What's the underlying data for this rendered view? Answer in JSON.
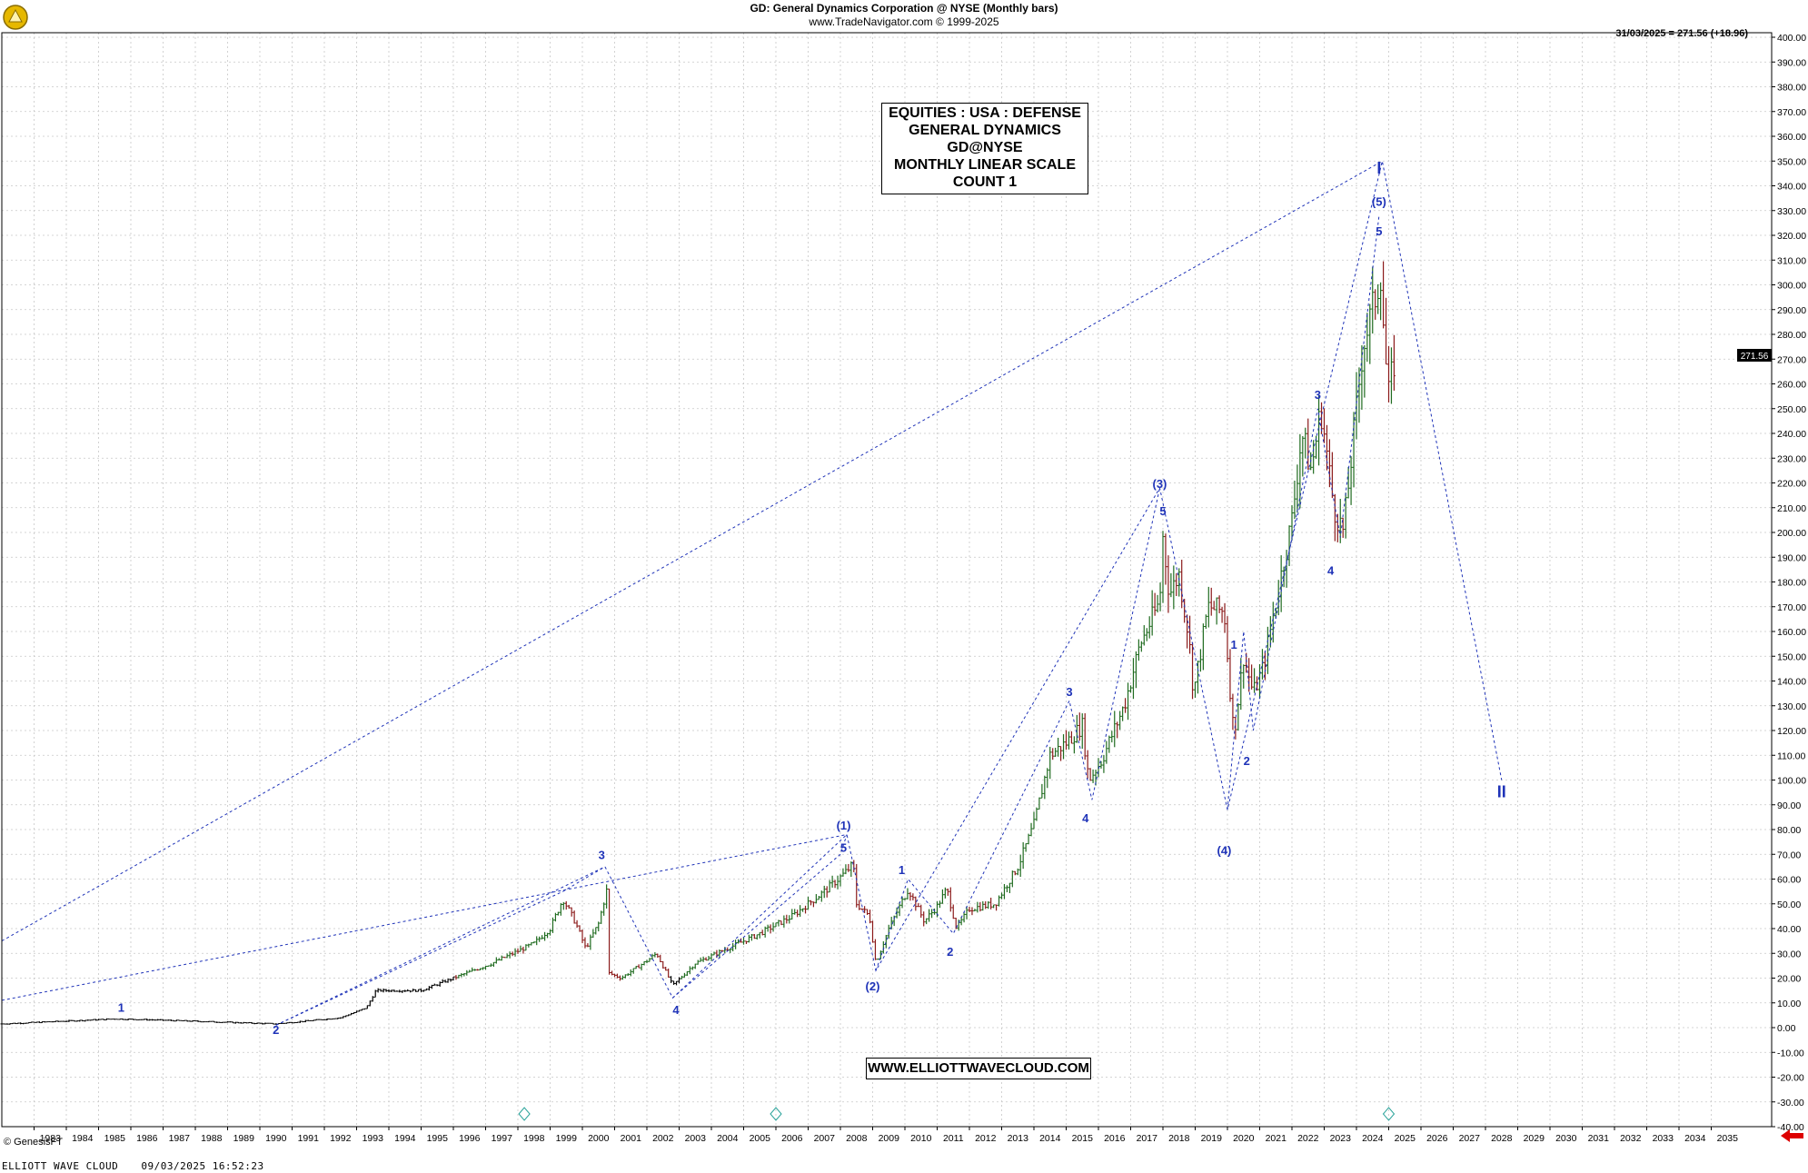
{
  "header": {
    "title": "GD:  General Dynamics Corporation @ NYSE  (Monthly bars)",
    "source": "www.TradeNavigator.com © 1999-2025",
    "last_bar": "31/03/2025 = 271.56 (+18.96)"
  },
  "info_box": [
    "EQUITIES : USA : DEFENSE",
    "GENERAL DYNAMICS",
    "GD@NYSE",
    "MONTHLY LINEAR SCALE",
    "COUNT 1"
  ],
  "url_box": "WWW.ELLIOTTWAVECLOUD.COM",
  "copyright": "© GenesisFT",
  "footer": {
    "left": "ELLIOTT WAVE CLOUD",
    "right": "09/03/2025 16:52:23"
  },
  "price_marker": "271.56",
  "colors": {
    "wave_labels": "#1f33b8",
    "wave_lines": "#1f33b8",
    "bars": "#000000",
    "down_bars": "#8b1a1a",
    "up_bars": "#1f6b1f",
    "arrow": "#dd0000"
  },
  "chart_data": {
    "type": "ohlc-bar",
    "ylim": [
      -40,
      400
    ],
    "yticks": [
      "-40.00",
      "-30.00",
      "-20.00",
      "-10.00",
      "0.00",
      "10.00",
      "20.00",
      "30.00",
      "40.00",
      "50.00",
      "60.00",
      "70.00",
      "80.00",
      "90.00",
      "100.00",
      "110.00",
      "120.00",
      "130.00",
      "140.00",
      "150.00",
      "160.00",
      "170.00",
      "180.00",
      "190.00",
      "200.00",
      "210.00",
      "220.00",
      "230.00",
      "240.00",
      "250.00",
      "260.00",
      "270.00",
      "280.00",
      "290.00",
      "300.00",
      "310.00",
      "320.00",
      "330.00",
      "340.00",
      "350.00",
      "360.00",
      "370.00",
      "380.00",
      "390.00",
      "400.00"
    ],
    "x_labels": [
      "1983",
      "1984",
      "1985",
      "1986",
      "1987",
      "1988",
      "1989",
      "1990",
      "1991",
      "1992",
      "1993",
      "1994",
      "1995",
      "1996",
      "1997",
      "1998",
      "1999",
      "2000",
      "2001",
      "2002",
      "2003",
      "2004",
      "2005",
      "2006",
      "2007",
      "2008",
      "2009",
      "2010",
      "2011",
      "2012",
      "2013",
      "2014",
      "2015",
      "2016",
      "2017",
      "2018",
      "2019",
      "2020",
      "2021",
      "2022",
      "2023",
      "2024",
      "2025",
      "2026",
      "2027",
      "2028",
      "2029",
      "2030",
      "2031",
      "2032",
      "2033",
      "2034",
      "2035"
    ],
    "price_path": [
      [
        1982.0,
        1.5
      ],
      [
        1985.5,
        3.5
      ],
      [
        1986.5,
        3.2
      ],
      [
        1990.5,
        1.5
      ],
      [
        1992.5,
        4
      ],
      [
        1993.3,
        8
      ],
      [
        1993.6,
        15
      ],
      [
        1995.0,
        15
      ],
      [
        1996.0,
        20
      ],
      [
        1997.2,
        26
      ],
      [
        1998.5,
        34
      ],
      [
        1999.0,
        40
      ],
      [
        1999.4,
        52
      ],
      [
        1999.8,
        42
      ],
      [
        2000.1,
        32
      ],
      [
        2000.5,
        42
      ],
      [
        2000.8,
        58
      ],
      [
        2000.83,
        22
      ],
      [
        2001.2,
        20
      ],
      [
        2002.0,
        27
      ],
      [
        2002.3,
        30
      ],
      [
        2002.8,
        17
      ],
      [
        2003.5,
        26
      ],
      [
        2004.5,
        32
      ],
      [
        2005.5,
        38
      ],
      [
        2006.5,
        45
      ],
      [
        2007.5,
        55
      ],
      [
        2008.1,
        62
      ],
      [
        2008.4,
        66
      ],
      [
        2008.5,
        50
      ],
      [
        2008.9,
        45
      ],
      [
        2009.1,
        26
      ],
      [
        2009.5,
        40
      ],
      [
        2010.1,
        56
      ],
      [
        2010.6,
        43
      ],
      [
        2011.0,
        49
      ],
      [
        2011.3,
        56
      ],
      [
        2011.6,
        40
      ],
      [
        2012.0,
        48
      ],
      [
        2012.8,
        50
      ],
      [
        2013.5,
        65
      ],
      [
        2014.0,
        82
      ],
      [
        2014.5,
        110
      ],
      [
        2015.0,
        115
      ],
      [
        2015.5,
        122
      ],
      [
        2015.7,
        100
      ],
      [
        2016.1,
        108
      ],
      [
        2016.8,
        130
      ],
      [
        2017.3,
        155
      ],
      [
        2017.9,
        172
      ],
      [
        2018.0,
        198
      ],
      [
        2018.2,
        175
      ],
      [
        2018.5,
        183
      ],
      [
        2018.8,
        158
      ],
      [
        2018.95,
        135
      ],
      [
        2019.4,
        170
      ],
      [
        2019.9,
        168
      ],
      [
        2020.05,
        142
      ],
      [
        2020.2,
        118
      ],
      [
        2020.5,
        150
      ],
      [
        2020.8,
        135
      ],
      [
        2021.1,
        145
      ],
      [
        2021.7,
        185
      ],
      [
        2022.0,
        205
      ],
      [
        2022.3,
        240
      ],
      [
        2022.6,
        225
      ],
      [
        2022.9,
        250
      ],
      [
        2023.3,
        210
      ],
      [
        2023.6,
        200
      ],
      [
        2023.8,
        225
      ],
      [
        2024.2,
        275
      ],
      [
        2024.5,
        290
      ],
      [
        2024.75,
        305
      ],
      [
        2024.9,
        270
      ],
      [
        2025.0,
        255
      ],
      [
        2025.2,
        271.56
      ]
    ],
    "wave_lines": [
      [
        [
          1990.5,
          1
        ],
        [
          2000.7,
          65
        ],
        [
          2002.8,
          12
        ],
        [
          2008.2,
          78
        ],
        [
          2009.1,
          23
        ],
        [
          2017.9,
          218
        ],
        [
          2020.0,
          88
        ],
        [
          2024.8,
          350
        ],
        [
          2028.5,
          100
        ]
      ],
      [
        [
          2009.1,
          23
        ],
        [
          2010.1,
          60
        ],
        [
          2011.5,
          38
        ],
        [
          2015.1,
          132
        ],
        [
          2015.8,
          92
        ],
        [
          2017.9,
          218
        ]
      ],
      [
        [
          2020.0,
          88
        ],
        [
          2020.5,
          160
        ],
        [
          2020.8,
          120
        ],
        [
          2022.8,
          250
        ],
        [
          2023.5,
          198
        ],
        [
          2024.7,
          328
        ]
      ],
      [
        [
          1990.5,
          1
        ],
        [
          1999.4,
          55
        ],
        [
          2000.7,
          65
        ]
      ],
      [
        [
          2002.8,
          12
        ],
        [
          2008.0,
          70
        ],
        [
          2008.2,
          78
        ]
      ],
      [
        [
          1982.0,
          35
        ],
        [
          2024.8,
          350
        ]
      ],
      [
        [
          1982.0,
          11
        ],
        [
          2008.2,
          78
        ]
      ]
    ],
    "wave_labels": [
      {
        "text": "1",
        "x": 1985.7,
        "y": 6.5
      },
      {
        "text": "2",
        "x": 1990.5,
        "y": -2.5
      },
      {
        "text": "3",
        "x": 2000.6,
        "y": 68
      },
      {
        "text": "4",
        "x": 2002.9,
        "y": 5.5
      },
      {
        "text": "5",
        "x": 2008.1,
        "y": 71
      },
      {
        "text": "(1)",
        "x": 2008.1,
        "y": 80
      },
      {
        "text": "(2)",
        "x": 2009.0,
        "y": 15
      },
      {
        "text": "1",
        "x": 2009.9,
        "y": 62
      },
      {
        "text": "2",
        "x": 2011.4,
        "y": 29
      },
      {
        "text": "3",
        "x": 2015.1,
        "y": 134
      },
      {
        "text": "4",
        "x": 2015.6,
        "y": 83
      },
      {
        "text": "5",
        "x": 2018.0,
        "y": 207
      },
      {
        "text": "(3)",
        "x": 2017.9,
        "y": 218
      },
      {
        "text": "(4)",
        "x": 2019.9,
        "y": 70
      },
      {
        "text": "1",
        "x": 2020.2,
        "y": 153
      },
      {
        "text": "2",
        "x": 2020.6,
        "y": 106
      },
      {
        "text": "3",
        "x": 2022.8,
        "y": 254
      },
      {
        "text": "4",
        "x": 2023.2,
        "y": 183
      },
      {
        "text": "5",
        "x": 2024.7,
        "y": 320
      },
      {
        "text": "(5)",
        "x": 2024.7,
        "y": 332
      },
      {
        "text": "I",
        "x": 2024.7,
        "y": 345
      },
      {
        "text": "II",
        "x": 2028.5,
        "y": 93
      }
    ]
  }
}
